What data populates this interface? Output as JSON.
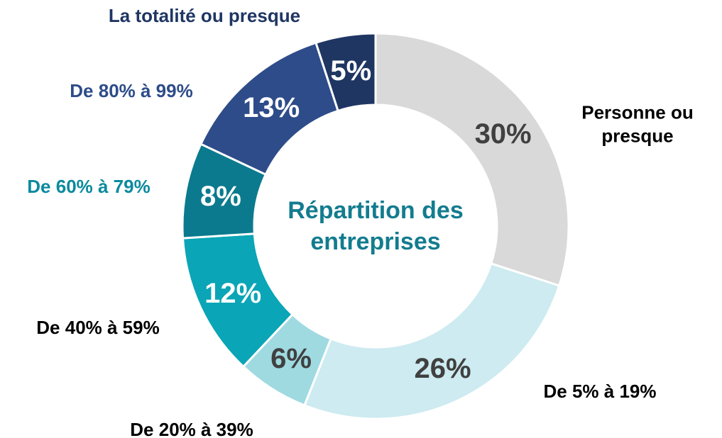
{
  "chart_data": {
    "type": "donut",
    "center_label": "Répartition des entreprises",
    "categories": [
      "Personne ou presque",
      "De 5% à 19%",
      "De 20% à 39%",
      "De 40% à 59%",
      "De 60% à 79%",
      "De 80% à 99%",
      "La totalité ou presque"
    ],
    "values": [
      30,
      26,
      6,
      12,
      8,
      13,
      5
    ],
    "value_labels": [
      "30%",
      "26%",
      "6%",
      "12%",
      "8%",
      "13%",
      "5%"
    ],
    "colors": [
      "#d9d9d9",
      "#cdebf0",
      "#9fdae1",
      "#0aa5b6",
      "#0b7a8e",
      "#2e4c89",
      "#1f3663"
    ],
    "value_label_colors": [
      "#404040",
      "#404040",
      "#404040",
      "#ffffff",
      "#ffffff",
      "#ffffff",
      "#ffffff"
    ],
    "label_colors": [
      "#000000",
      "#000000",
      "#000000",
      "#000000",
      "#0b8a9e",
      "#2e4c89",
      "#1f3663"
    ]
  }
}
